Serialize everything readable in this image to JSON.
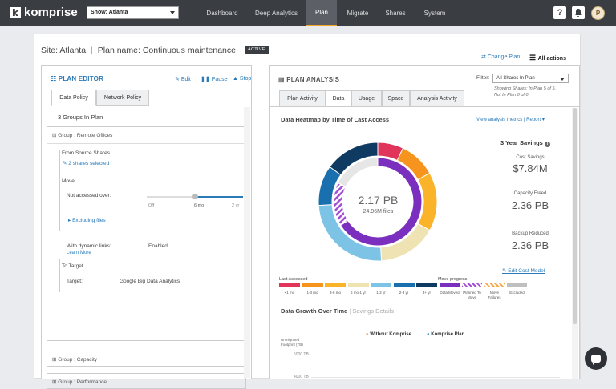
{
  "header": {
    "logo_text": "komprise",
    "site_select": "Show: Atlanta",
    "nav": [
      {
        "label": "Dashboard"
      },
      {
        "label": "Deep Analytics"
      },
      {
        "label": "Plan"
      },
      {
        "label": "Migrate"
      },
      {
        "label": "Shares"
      },
      {
        "label": "System"
      }
    ],
    "help_icon": "help-icon",
    "bell_icon": "bell-icon",
    "avatar_initial": "P"
  },
  "plan": {
    "site_label": "Site: Atlanta",
    "plan_name_label": "Plan name: Continuous maintenance",
    "status_badge": "ACTIVE",
    "change_plan": "Change Plan",
    "all_actions": "All actions"
  },
  "editor": {
    "title": "PLAN EDITOR",
    "edit": "Edit",
    "pause": "Pause",
    "stop": "Stop",
    "tabs": [
      "Data Policy",
      "Network Policy"
    ],
    "groups_heading": "3 Groups In Plan",
    "group1": "Group : Remote Offices",
    "from_source": "From Source Shares",
    "shares_selected": "2 shares selected",
    "move": "Move",
    "not_accessed": "Not accessed over:",
    "slider_ticks": [
      "Off",
      "6 mo",
      "2 yr"
    ],
    "slider_value_fraction": 0.5,
    "excluding_files": "Excluding files",
    "dynamic_links_label": "With dynamic links:",
    "dynamic_links_value": "Enabled",
    "learn_more": "Learn More",
    "to_target": "To Target",
    "target_label": "Target:",
    "target_value": "Google Big Data Analytics",
    "group2": "Group : Capacity",
    "group3": "Group : Performance"
  },
  "analysis": {
    "title": "PLAN ANALYSIS",
    "filter_label": "Filter:",
    "filter_value": "All Shares In Plan",
    "filter_note1": "Showing Shares: In Plan 5 of 5,",
    "filter_note2": "Not In Plan 0 of 0",
    "tabs": [
      "Plan Activity",
      "Data",
      "Usage",
      "Space",
      "Analysis Activity"
    ],
    "heatmap_title": "Data Heatmap by Time of Last Access",
    "view_metrics": "View analysis metrics",
    "report": "Report",
    "center_value": "2.17 PB",
    "center_sub": "24.96M files",
    "savings_title": "3 Year Savings",
    "cost_label": "Cost Savings",
    "cost_value": "$7.84M",
    "capacity_label": "Capacity Freed",
    "capacity_value": "2.36 PB",
    "backup_label": "Backup Reduced",
    "backup_value": "2.36 PB",
    "edit_cost_model": "Edit Cost Model",
    "last_accessed": "Last Accessed",
    "move_progress": "Move progress",
    "age_labels": [
      "<1 mo",
      "1-3 mo",
      "3-6 mo",
      "6 mo-1 yr",
      "1-2 yr",
      "2-3 yr",
      "3+ yr"
    ],
    "progress_labels": [
      "Data Moved",
      "Planned To Move",
      "Move Failures",
      "Excluded"
    ],
    "growth_title": "Data Growth Over Time",
    "savings_details": "Savings Details",
    "legend_without": "Without Komprise",
    "legend_with": "Komprise Plan",
    "y_axis_label": "Unmigrated Footprint (TB)",
    "y_ticks": [
      "5000 TB",
      "4000 TB"
    ]
  },
  "colors": {
    "age": [
      "#e0345a",
      "#f7941d",
      "#fbb42a",
      "#efe2b3",
      "#7cc3e6",
      "#1a6fae",
      "#0f3b63"
    ],
    "move": [
      "#7b2fbe",
      "#a24fd3",
      "#f7a64a",
      "#bfbfbf"
    ]
  },
  "chart_data": {
    "type": "pie",
    "categories": [
      "<1 mo",
      "1-3 mo",
      "3-6 mo",
      "6 mo-1 yr",
      "1-2 yr",
      "2-3 yr",
      "3+ yr"
    ],
    "values": [
      7,
      10,
      16,
      16,
      25,
      11,
      15
    ],
    "inner_ring": {
      "categories": [
        "Data Moved",
        "Planned To Move",
        "Move Failures",
        "Excluded"
      ],
      "values": [
        66,
        16,
        0,
        18
      ]
    }
  }
}
